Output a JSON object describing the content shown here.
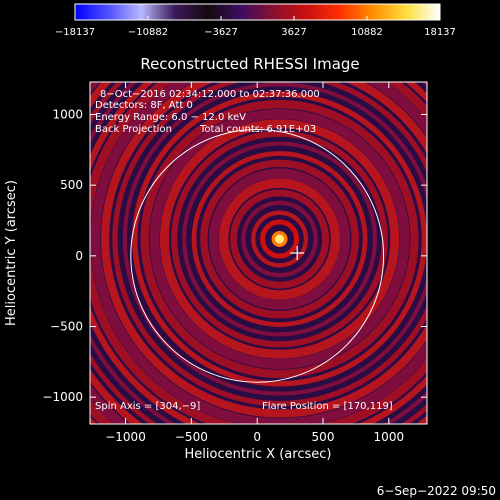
{
  "chart_data": {
    "type": "heatmap",
    "title": "Reconstructed RHESSI Image",
    "xlabel": "Heliocentric X (arcsec)",
    "ylabel": "Heliocentric Y (arcsec)",
    "xlim": [
      -1270,
      1290
    ],
    "ylim": [
      -1190,
      1230
    ],
    "x_ticks": [
      {
        "value": -1000,
        "label": "−1000"
      },
      {
        "value": -500,
        "label": "−500"
      },
      {
        "value": 0,
        "label": "0"
      },
      {
        "value": 500,
        "label": "500"
      },
      {
        "value": 1000,
        "label": "1000"
      }
    ],
    "y_ticks": [
      {
        "value": 1000,
        "label": "1000"
      },
      {
        "value": 500,
        "label": "500"
      },
      {
        "value": 0,
        "label": "0"
      },
      {
        "value": -500,
        "label": "−500"
      },
      {
        "value": -1000,
        "label": "−1000"
      }
    ],
    "colorbar": {
      "min": -18137,
      "max": 18137,
      "ticks": [
        {
          "value": -18137,
          "label": "−18137"
        },
        {
          "value": -10882,
          "label": "−10882"
        },
        {
          "value": -3627,
          "label": "−3627"
        },
        {
          "value": 3627,
          "label": "3627"
        },
        {
          "value": 10882,
          "label": "10882"
        },
        {
          "value": 18137,
          "label": "18137"
        }
      ],
      "colors": [
        "#0000ff",
        "#5050ff",
        "#b8b8ff",
        "#3a1a5a",
        "#150810",
        "#3d0e60",
        "#8c1030",
        "#cc1010",
        "#ff3000",
        "#ff9000",
        "#ffe040",
        "#ffffff"
      ]
    },
    "solar_limb": {
      "center_x": 0,
      "center_y": 0,
      "radius": 960
    },
    "source_peak": {
      "x": 170,
      "y": 119
    },
    "cross_marker": {
      "x": 304,
      "y": 20
    },
    "annotations": [
      "8−Oct−2016 02:34:12.000 to 02:37:36.000",
      "Detectors: 8F, Att 0",
      "Energy Range: 6.0 − 12.0 keV",
      "Back Projection",
      "Total counts: 6.91E+03",
      "Spin Axis = [304,−9]",
      "Flare Position = [170,119]"
    ],
    "footer": "6−Sep−2022 09:50"
  }
}
